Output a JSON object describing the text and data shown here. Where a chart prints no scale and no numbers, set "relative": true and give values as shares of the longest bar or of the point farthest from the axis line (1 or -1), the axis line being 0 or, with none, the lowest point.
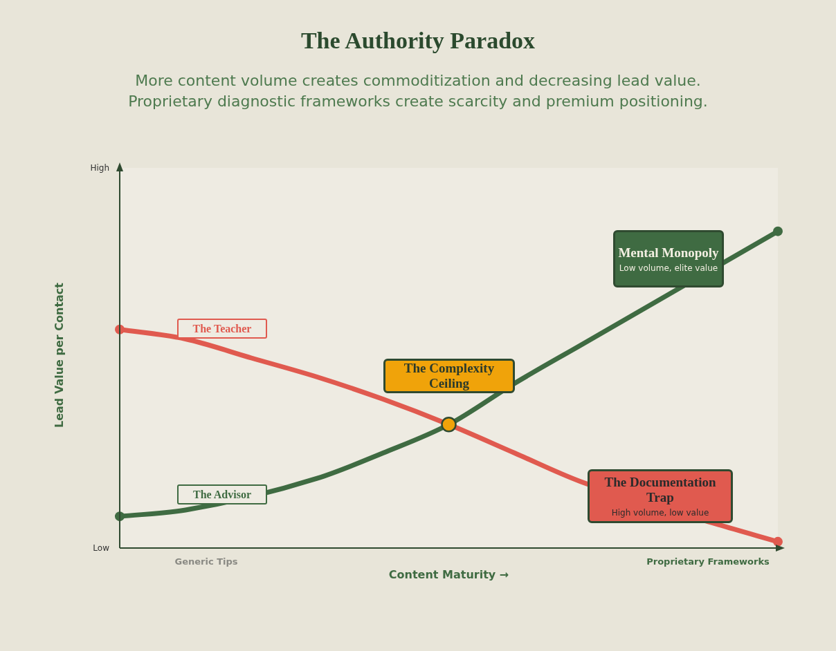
{
  "chart_data": {
    "type": "line",
    "title": "The Authority Paradox",
    "subtitle": "More content volume creates commoditization and decreasing lead value.\nProprietary diagnostic frameworks create scarcity and premium positioning.",
    "xlabel": "Content Maturity →",
    "ylabel": "Lead Value per Contact",
    "relative": true,
    "legend": false,
    "grid": false,
    "categories": [
      null,
      null,
      null,
      null,
      null,
      null,
      null,
      null,
      null,
      null,
      null
    ],
    "series": [
      {
        "name": "The Teacher",
        "color": "#e05a4f",
        "values": [
          0.69,
          0.66,
          0.6,
          0.54,
          0.47,
          0.39,
          0.3,
          0.21,
          null,
          0.08,
          0.02
        ]
      },
      {
        "name": "The Advisor",
        "color": "#3f6b42",
        "values": [
          0.1,
          0.12,
          null,
          0.22,
          0.3,
          0.39,
          0.52,
          0.64,
          null,
          null,
          1
        ]
      }
    ],
    "annotations": [
      "Low",
      "High",
      "Generic Tips",
      "Proprietary Frameworks",
      "The Complexity Ceiling",
      "Mental Monopoly",
      "Low volume, elite value",
      "The Documentation Trap",
      "High volume, low value"
    ]
  }
}
